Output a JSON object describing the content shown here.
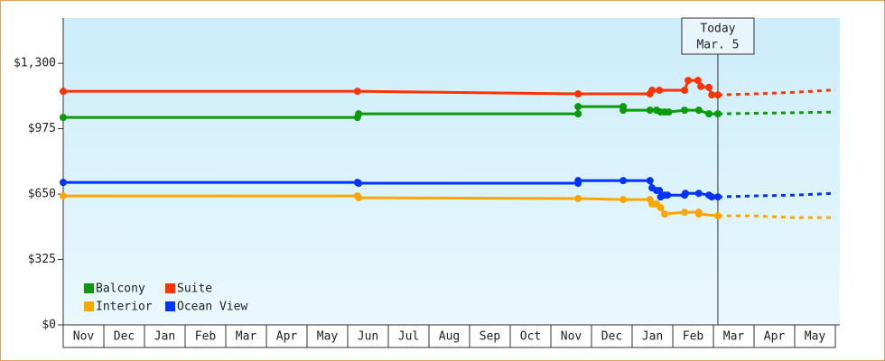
{
  "chart_data": {
    "type": "line",
    "ylim": [
      0,
      1525
    ],
    "yticks": [
      {
        "value": 0,
        "label": "$0"
      },
      {
        "value": 325,
        "label": "$325"
      },
      {
        "value": 650,
        "label": "$650"
      },
      {
        "value": 975,
        "label": "$975"
      },
      {
        "value": 1300,
        "label": "$1,300"
      }
    ],
    "xlim": [
      0,
      19
    ],
    "xticks": [
      {
        "value": 0.5,
        "label": "Nov"
      },
      {
        "value": 1.5,
        "label": "Dec"
      },
      {
        "value": 2.5,
        "label": "Jan"
      },
      {
        "value": 3.5,
        "label": "Feb"
      },
      {
        "value": 4.5,
        "label": "Mar"
      },
      {
        "value": 5.5,
        "label": "Apr"
      },
      {
        "value": 6.5,
        "label": "May"
      },
      {
        "value": 7.5,
        "label": "Jun"
      },
      {
        "value": 8.5,
        "label": "Jul"
      },
      {
        "value": 9.5,
        "label": "Aug"
      },
      {
        "value": 10.5,
        "label": "Sep"
      },
      {
        "value": 11.5,
        "label": "Oct"
      },
      {
        "value": 12.5,
        "label": "Nov"
      },
      {
        "value": 13.5,
        "label": "Dec"
      },
      {
        "value": 14.5,
        "label": "Jan"
      },
      {
        "value": 15.5,
        "label": "Feb"
      },
      {
        "value": 16.5,
        "label": "Mar"
      },
      {
        "value": 17.5,
        "label": "Apr"
      },
      {
        "value": 18.5,
        "label": "May"
      }
    ],
    "annotation": {
      "x": 16.11,
      "lines": [
        "Today",
        "Mar. 5"
      ]
    },
    "legend": "bottom-left",
    "series": [
      {
        "name": "Balcony",
        "color": "#0a9a0a",
        "x": [
          0,
          7.24,
          7.27,
          12.67,
          12.67,
          13.78,
          13.78,
          14.44,
          14.6,
          14.7,
          14.8,
          14.9,
          15.29,
          15.64,
          15.89,
          16.11
        ],
        "values": [
          1031,
          1031,
          1049,
          1049,
          1085,
          1085,
          1067,
          1067,
          1067,
          1058,
          1058,
          1058,
          1067,
          1067,
          1049,
          1049
        ],
        "forecast_x": [
          16.11,
          17.5,
          19
        ],
        "forecast_values": [
          1049,
          1053,
          1058
        ]
      },
      {
        "name": "Suite",
        "color": "#ff3300",
        "x": [
          0,
          7.24,
          12.67,
          14.44,
          14.49,
          14.67,
          15.29,
          15.38,
          15.62,
          15.69,
          15.89,
          15.96,
          16.11
        ],
        "values": [
          1161,
          1161,
          1148,
          1148,
          1166,
          1166,
          1166,
          1215,
          1215,
          1185,
          1180,
          1143,
          1143
        ],
        "forecast_x": [
          16.11,
          17,
          18,
          19
        ],
        "forecast_values": [
          1143,
          1148,
          1156,
          1168
        ]
      },
      {
        "name": "Interior",
        "color": "#ffa500",
        "x": [
          0,
          7.24,
          7.27,
          12.67,
          13.78,
          14.44,
          14.49,
          14.6,
          14.7,
          14.8,
          15.29,
          15.64,
          15.64,
          16.11
        ],
        "values": [
          641,
          641,
          632,
          628,
          623,
          623,
          601,
          601,
          583,
          551,
          560,
          560,
          551,
          542
        ],
        "forecast_x": [
          16.11,
          17,
          18,
          19
        ],
        "forecast_values": [
          542,
          542,
          533,
          533
        ]
      },
      {
        "name": "Ocean View",
        "color": "#0033ff",
        "x": [
          0,
          7.24,
          7.27,
          12.67,
          12.67,
          13.78,
          14.44,
          14.49,
          14.6,
          14.67,
          14.7,
          14.8,
          14.87,
          15.29,
          15.31,
          15.64,
          15.89,
          15.96,
          16.11
        ],
        "values": [
          708,
          708,
          704,
          704,
          717,
          717,
          717,
          681,
          668,
          668,
          636,
          645,
          645,
          645,
          654,
          654,
          645,
          636,
          636
        ],
        "forecast_x": [
          16.11,
          17,
          18,
          19
        ],
        "forecast_values": [
          636,
          641,
          645,
          654
        ]
      }
    ]
  }
}
